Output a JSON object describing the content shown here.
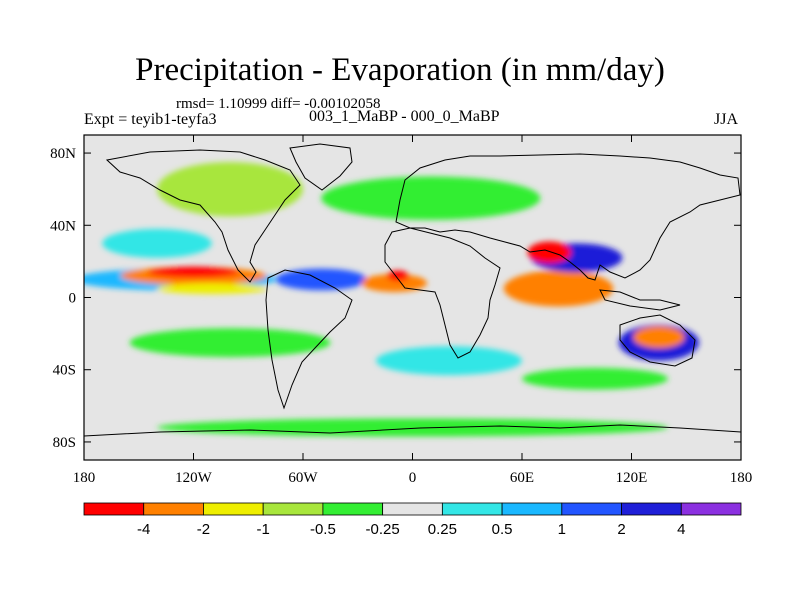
{
  "title": "Precipitation - Evaporation (in mm/day)",
  "stats_line": "rmsd= 1.10999 diff= -0.00102058",
  "expt_label": "Expt = teyib1-teyfa3",
  "case_label": "003_1_MaBP - 000_0_MaBP",
  "season": "JJA",
  "map": {
    "lon_range": [
      -180,
      180
    ],
    "lat_range": [
      -90,
      90
    ],
    "lon_ticks": [
      {
        "value": -180,
        "label": "180"
      },
      {
        "value": -120,
        "label": "120W"
      },
      {
        "value": -60,
        "label": "60W"
      },
      {
        "value": 0,
        "label": "0"
      },
      {
        "value": 60,
        "label": "60E"
      },
      {
        "value": 120,
        "label": "120E"
      },
      {
        "value": 180,
        "label": "180"
      }
    ],
    "lat_ticks": [
      {
        "value": 80,
        "label": "80N"
      },
      {
        "value": 40,
        "label": "40N"
      },
      {
        "value": 0,
        "label": "0"
      },
      {
        "value": -40,
        "label": "40S"
      },
      {
        "value": -80,
        "label": "80S"
      }
    ],
    "background_color": "#e5e5e5"
  },
  "colorbar": {
    "colors": [
      "#ff0000",
      "#ff8000",
      "#eeee00",
      "#a8e63c",
      "#33ee33",
      "#e5e5e5",
      "#33e6e6",
      "#1ab8ff",
      "#2255ff",
      "#1f1fd8",
      "#8b30e0"
    ],
    "labels": [
      "-4",
      "-2",
      "-1",
      "-0.5",
      "-0.25",
      "0.25",
      "0.5",
      "1",
      "2",
      "4"
    ]
  },
  "field_blobs": [
    {
      "lon": -130,
      "lat": 10,
      "rlon": 55,
      "rlat": 6,
      "color": "#1ab8ff"
    },
    {
      "lon": -120,
      "lat": 12,
      "rlon": 40,
      "rlat": 5,
      "color": "#ff8000"
    },
    {
      "lon": -120,
      "lat": 14,
      "rlon": 25,
      "rlat": 3,
      "color": "#ff0000"
    },
    {
      "lon": -110,
      "lat": 5,
      "rlon": 30,
      "rlat": 3,
      "color": "#eeee00"
    },
    {
      "lon": -50,
      "lat": 10,
      "rlon": 25,
      "rlat": 6,
      "color": "#2255ff"
    },
    {
      "lon": -10,
      "lat": 8,
      "rlon": 18,
      "rlat": 5,
      "color": "#ff8000"
    },
    {
      "lon": -8,
      "lat": 12,
      "rlon": 6,
      "rlat": 3,
      "color": "#ff0000"
    },
    {
      "lon": 80,
      "lat": 5,
      "rlon": 30,
      "rlat": 10,
      "color": "#ff8000"
    },
    {
      "lon": 90,
      "lat": 22,
      "rlon": 25,
      "rlat": 8,
      "color": "#1f1fd8"
    },
    {
      "lon": 75,
      "lat": 25,
      "rlon": 12,
      "rlat": 6,
      "color": "#ff0000"
    },
    {
      "lon": 135,
      "lat": -25,
      "rlon": 22,
      "rlat": 10,
      "color": "#1f1fd8"
    },
    {
      "lon": 135,
      "lat": -22,
      "rlon": 14,
      "rlat": 6,
      "color": "#ff8000"
    },
    {
      "lon": -100,
      "lat": -25,
      "rlon": 55,
      "rlat": 8,
      "color": "#33ee33"
    },
    {
      "lon": 20,
      "lat": -35,
      "rlon": 40,
      "rlat": 8,
      "color": "#33e6e6"
    },
    {
      "lon": 100,
      "lat": -45,
      "rlon": 40,
      "rlat": 6,
      "color": "#33ee33"
    },
    {
      "lon": 0,
      "lat": -72,
      "rlon": 140,
      "rlat": 5,
      "color": "#33ee33"
    },
    {
      "lon": 10,
      "lat": 55,
      "rlon": 60,
      "rlat": 12,
      "color": "#33ee33"
    },
    {
      "lon": -100,
      "lat": 60,
      "rlon": 40,
      "rlat": 15,
      "color": "#a8e63c"
    },
    {
      "lon": -140,
      "lat": 30,
      "rlon": 30,
      "rlat": 8,
      "color": "#33e6e6"
    }
  ]
}
